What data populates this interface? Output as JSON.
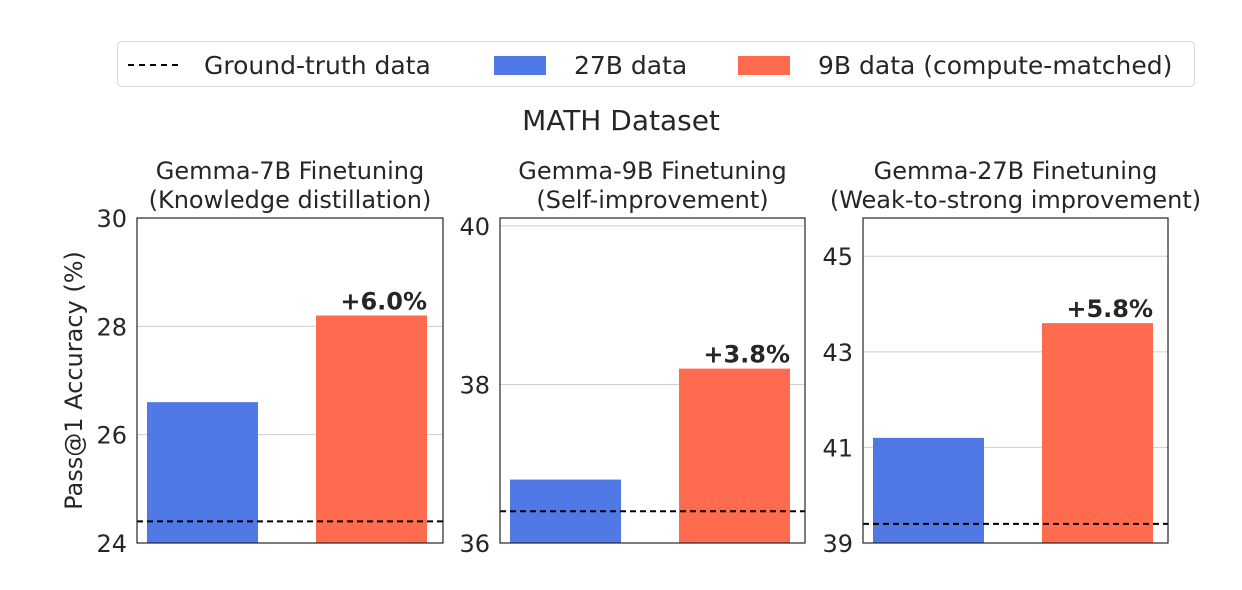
{
  "legend": {
    "ground_truth": "Ground-truth data",
    "b27": "27B data",
    "b9": "9B data (compute-matched)"
  },
  "suptitle": "MATH Dataset",
  "colors": {
    "b27": "#5079e6",
    "b9": "#ff6b4f",
    "baseline": "#000000",
    "grid": "#cfcfcf"
  },
  "chart_data": [
    {
      "type": "bar",
      "title": [
        "Gemma-7B Finetuning",
        "(Knowledge distillation)"
      ],
      "ylabel": "Pass@1 Accuracy (%)",
      "ylim": [
        24,
        30
      ],
      "yticks": [
        24,
        26,
        28,
        30
      ],
      "series": [
        {
          "name": "27B data",
          "value": 26.6
        },
        {
          "name": "9B data (compute-matched)",
          "value": 28.2
        }
      ],
      "baseline": 24.4,
      "annotation": "+6.0%"
    },
    {
      "type": "bar",
      "title": [
        "Gemma-9B Finetuning",
        "(Self-improvement)"
      ],
      "ylabel": "",
      "ylim": [
        36,
        40.1
      ],
      "yticks": [
        36,
        38,
        40
      ],
      "series": [
        {
          "name": "27B data",
          "value": 36.8
        },
        {
          "name": "9B data (compute-matched)",
          "value": 38.2
        }
      ],
      "baseline": 36.4,
      "annotation": "+3.8%"
    },
    {
      "type": "bar",
      "title": [
        "Gemma-27B Finetuning",
        "(Weak-to-strong improvement)"
      ],
      "ylabel": "",
      "ylim": [
        39,
        45.8
      ],
      "yticks": [
        39,
        41,
        43,
        45
      ],
      "series": [
        {
          "name": "27B data",
          "value": 41.2
        },
        {
          "name": "9B data (compute-matched)",
          "value": 43.6
        }
      ],
      "baseline": 39.4,
      "annotation": "+5.8%"
    }
  ]
}
